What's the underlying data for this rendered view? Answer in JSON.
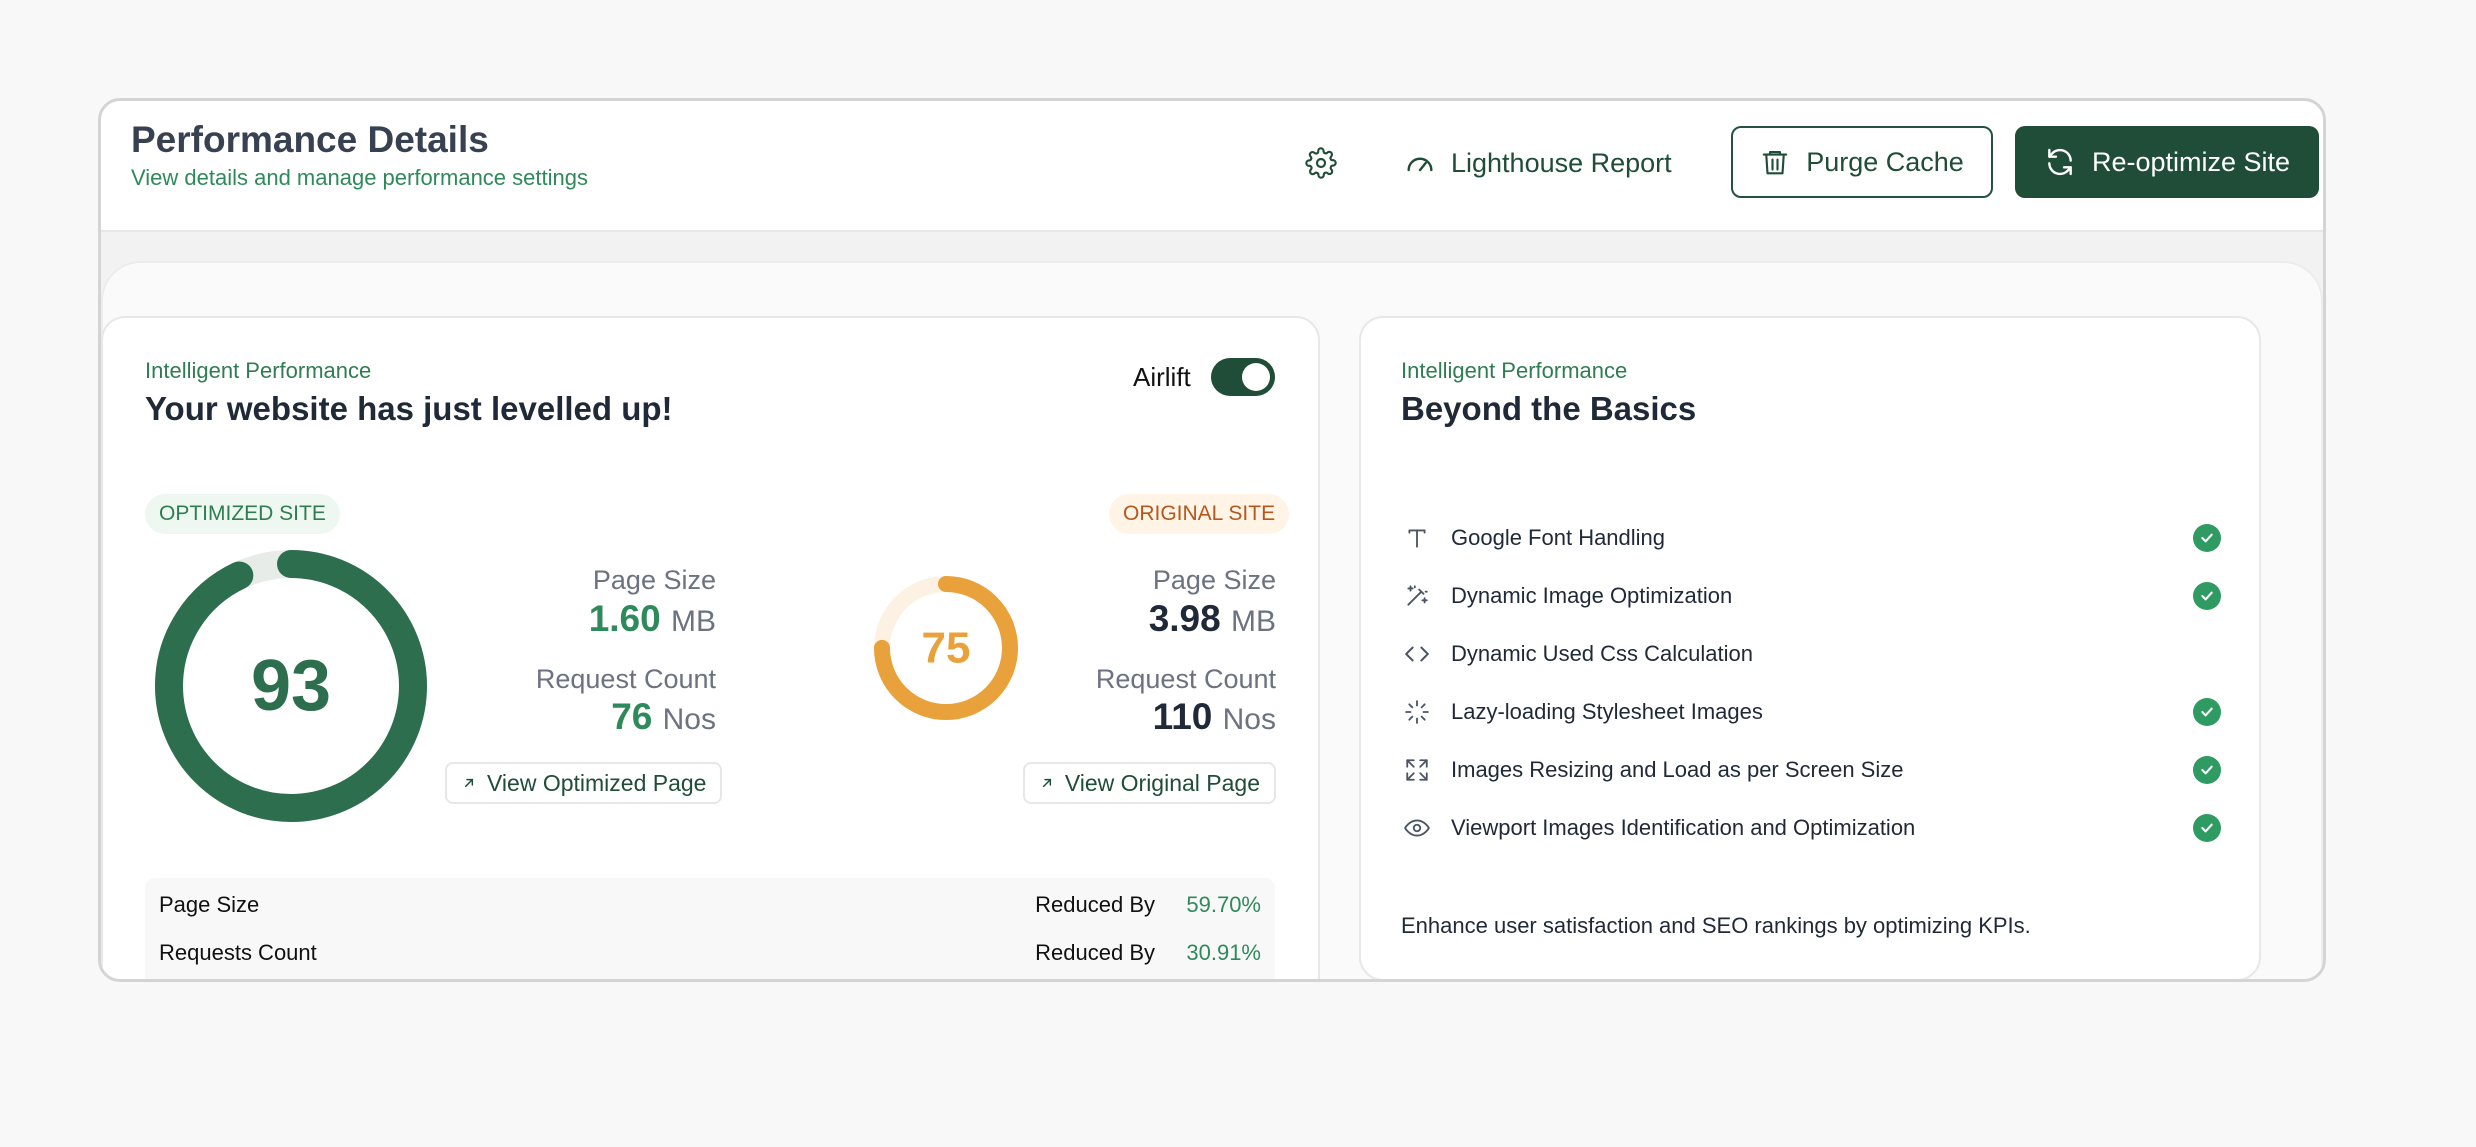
{
  "header": {
    "title": "Performance Details",
    "subtitle": "View details and manage performance settings",
    "settings_icon": "gear-icon",
    "lighthouse_label": "Lighthouse Report",
    "purge_label": "Purge Cache",
    "reoptimize_label": "Re-optimize Site"
  },
  "performance_card": {
    "eyebrow": "Intelligent Performance",
    "title": "Your website has just levelled up!",
    "toggle_label": "Airlift",
    "toggle_on": true,
    "optimized": {
      "badge": "OPTIMIZED SITE",
      "score": "93",
      "score_value": 93,
      "page_size_label": "Page Size",
      "page_size_value": "1.60",
      "page_size_unit": "MB",
      "request_label": "Request Count",
      "request_value": "76",
      "request_unit": "Nos",
      "link_label": "View Optimized Page"
    },
    "original": {
      "badge": "ORIGINAL SITE",
      "score": "75",
      "score_value": 75,
      "page_size_label": "Page Size",
      "page_size_value": "3.98",
      "page_size_unit": "MB",
      "request_label": "Request Count",
      "request_value": "110",
      "request_unit": "Nos",
      "link_label": "View Original Page"
    },
    "summary": [
      {
        "label": "Page Size",
        "reduced_label": "Reduced By",
        "value": "59.70%"
      },
      {
        "label": "Requests Count",
        "reduced_label": "Reduced By",
        "value": "30.91%"
      }
    ]
  },
  "basics_card": {
    "eyebrow": "Intelligent Performance",
    "title": "Beyond the Basics",
    "features": [
      {
        "label": "Google Font Handling",
        "icon": "text-icon",
        "checked": true
      },
      {
        "label": "Dynamic Image Optimization",
        "icon": "magic-wand-icon",
        "checked": true
      },
      {
        "label": "Dynamic Used Css Calculation",
        "icon": "code-icon",
        "checked": false
      },
      {
        "label": "Lazy-loading Stylesheet Images",
        "icon": "loader-icon",
        "checked": true
      },
      {
        "label": "Images Resizing and Load as per Screen Size",
        "icon": "expand-icon",
        "checked": true
      },
      {
        "label": "Viewport Images Identification and Optimization",
        "icon": "eye-icon",
        "checked": true
      }
    ],
    "footnote": "Enhance user satisfaction and SEO rankings by optimizing KPIs."
  },
  "colors": {
    "brand": "#1f4d38",
    "accent_green": "#2f8a5b",
    "accent_orange": "#e9a13b",
    "check_green": "#2f9a62"
  }
}
